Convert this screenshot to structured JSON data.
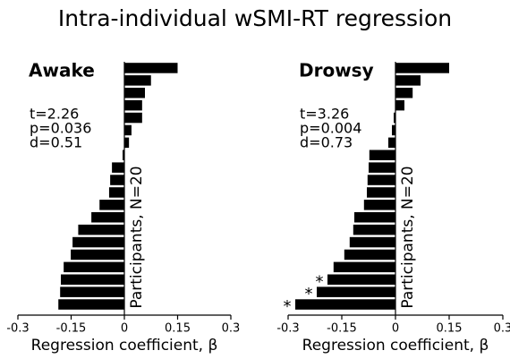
{
  "title": "Intra-individual wSMI-RT regression",
  "chart_data": [
    {
      "type": "barh",
      "title": "Awake",
      "title_color": "#ff0000",
      "color": "#000000",
      "annotations": [
        "t=2.26",
        "p=0.036",
        "d=0.51"
      ],
      "values": [
        0.15,
        0.075,
        0.058,
        0.05,
        0.05,
        0.02,
        0.013,
        -0.005,
        -0.035,
        -0.04,
        -0.043,
        -0.07,
        -0.093,
        -0.13,
        -0.146,
        -0.151,
        -0.171,
        -0.179,
        -0.181,
        -0.186
      ],
      "markers": [
        null,
        null,
        null,
        null,
        null,
        null,
        null,
        null,
        null,
        null,
        null,
        null,
        null,
        null,
        null,
        null,
        null,
        null,
        null,
        null
      ],
      "xlabel": "Regression coefficient, β",
      "ylabel": "Participants, N=20",
      "xlim": [
        -0.3,
        0.3
      ],
      "xticks": [
        -0.3,
        -0.15,
        0,
        0.15,
        0.3
      ]
    },
    {
      "type": "barh",
      "title": "Drowsy",
      "title_color": "#0000ff",
      "color": "#000000",
      "annotations": [
        "t=3.26",
        "p=0.004",
        "d=0.73"
      ],
      "values": [
        0.15,
        0.07,
        0.048,
        0.025,
        -0.005,
        -0.01,
        -0.02,
        -0.073,
        -0.075,
        -0.078,
        -0.08,
        -0.088,
        -0.115,
        -0.118,
        -0.128,
        -0.143,
        -0.173,
        -0.19,
        -0.22,
        -0.28
      ],
      "markers": [
        null,
        null,
        null,
        null,
        null,
        null,
        null,
        null,
        null,
        null,
        null,
        null,
        null,
        null,
        null,
        null,
        null,
        "*",
        "*",
        "*"
      ],
      "xlabel": "Regression coefficient, β",
      "ylabel": "Participants, N=20",
      "xlim": [
        -0.3,
        0.3
      ],
      "xticks": [
        -0.3,
        -0.15,
        0,
        0.15,
        0.3
      ]
    }
  ]
}
